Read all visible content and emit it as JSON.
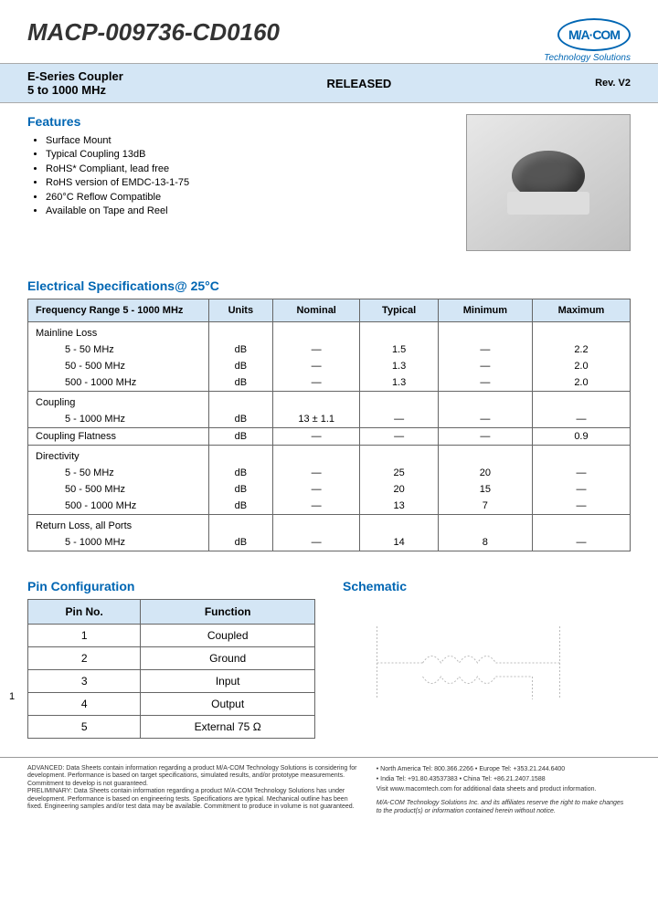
{
  "header": {
    "part_number": "MACP-009736-CD0160",
    "logo_text": "M/A·COM",
    "tagline": "Technology Solutions"
  },
  "band": {
    "product_line": "E-Series Coupler",
    "freq_range": "5 to 1000 MHz",
    "status": "RELEASED",
    "revision": "Rev. V2"
  },
  "features": {
    "title": "Features",
    "items": [
      "Surface Mount",
      "Typical Coupling 13dB",
      "RoHS* Compliant, lead free",
      "RoHS version of  EMDC-13-1-75",
      "260°C Reflow Compatible",
      "Available on Tape and Reel"
    ]
  },
  "elec_spec": {
    "title": "Electrical Specifications@ 25°C",
    "columns": {
      "c0": "Frequency Range  5 - 1000 MHz",
      "c1": "Units",
      "c2": "Nominal",
      "c3": "Typical",
      "c4": "Minimum",
      "c5": "Maximum"
    },
    "groups": [
      {
        "label": "Mainline Loss",
        "rows": [
          {
            "range": "5 - 50 MHz",
            "units": "dB",
            "nom": "—",
            "typ": "1.5",
            "min": "—",
            "max": "2.2"
          },
          {
            "range": "50 - 500 MHz",
            "units": "dB",
            "nom": "—",
            "typ": "1.3",
            "min": "—",
            "max": "2.0"
          },
          {
            "range": "500 - 1000 MHz",
            "units": "dB",
            "nom": "—",
            "typ": "1.3",
            "min": "—",
            "max": "2.0"
          }
        ]
      },
      {
        "label": "Coupling",
        "rows": [
          {
            "range": "5 - 1000 MHz",
            "units": "dB",
            "nom": "13 ± 1.1",
            "typ": "—",
            "min": "—",
            "max": "—"
          }
        ]
      },
      {
        "label": "Coupling Flatness",
        "rows": [
          {
            "range": "",
            "units": "dB",
            "nom": "—",
            "typ": "—",
            "min": "—",
            "max": "0.9",
            "inline": true
          }
        ]
      },
      {
        "label": "Directivity",
        "rows": [
          {
            "range": "5 - 50 MHz",
            "units": "dB",
            "nom": "—",
            "typ": "25",
            "min": "20",
            "max": "—"
          },
          {
            "range": "50 - 500 MHz",
            "units": "dB",
            "nom": "—",
            "typ": "20",
            "min": "15",
            "max": "—"
          },
          {
            "range": "500 - 1000 MHz",
            "units": "dB",
            "nom": "—",
            "typ": "13",
            "min": "7",
            "max": "—"
          }
        ]
      },
      {
        "label": "Return Loss, all Ports",
        "rows": [
          {
            "range": "5 - 1000 MHz",
            "units": "dB",
            "nom": "—",
            "typ": "14",
            "min": "8",
            "max": "—"
          }
        ]
      }
    ]
  },
  "pin_config": {
    "title": "Pin Configuration",
    "columns": {
      "c0": "Pin No.",
      "c1": "Function"
    },
    "rows": [
      {
        "pin": "1",
        "fn": "Coupled"
      },
      {
        "pin": "2",
        "fn": "Ground"
      },
      {
        "pin": "3",
        "fn": "Input"
      },
      {
        "pin": "4",
        "fn": "Output"
      },
      {
        "pin": "5",
        "fn": "External 75 Ω"
      }
    ]
  },
  "schematic": {
    "title": "Schematic"
  },
  "page_number": "1",
  "footer": {
    "advanced": "ADVANCED: Data Sheets contain information regarding a product M/A-COM Technology Solutions is considering for development. Performance is based on target specifications, simulated results, and/or prototype measurements. Commitment to develop is not guaranteed.",
    "preliminary": "PRELIMINARY: Data Sheets contain information regarding a product M/A-COM Technology Solutions has under development. Performance is based on engineering tests. Specifications are typical. Mechanical outline has been fixed. Engineering samples and/or test data may be available. Commitment to produce in volume is not guaranteed.",
    "contacts": {
      "na": "North America  Tel: 800.366.2266",
      "eu": "Europe  Tel: +353.21.244.6400",
      "in": "India  Tel: +91.80.43537383",
      "cn": "China  Tel: +86.21.2407.1588",
      "web": "Visit www.macomtech.com for additional data sheets and product information."
    },
    "disclaimer": "M/A-COM Technology Solutions Inc. and its affiliates reserve the right to make changes to the product(s) or information contained herein without notice."
  },
  "colors": {
    "brand_blue": "#0066b3",
    "band_bg": "#d4e6f5",
    "border": "#666666"
  }
}
